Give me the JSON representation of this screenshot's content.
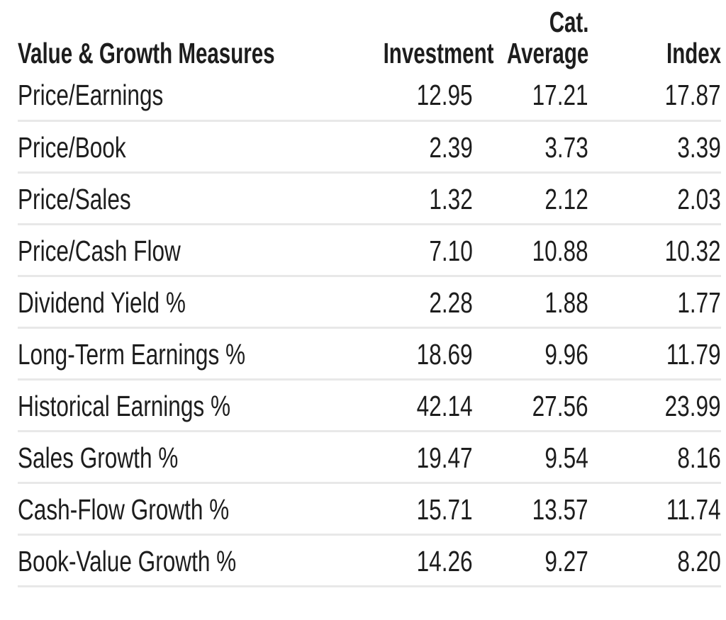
{
  "table": {
    "header": {
      "measures": "Value & Growth Measures",
      "investment": "Investment",
      "cat_line1": "Cat.",
      "cat_line2": "Average",
      "index": "Index"
    }
  },
  "chart_data": {
    "type": "table",
    "title": "Value & Growth Measures",
    "columns": [
      "Value & Growth Measures",
      "Investment",
      "Cat. Average",
      "Index"
    ],
    "rows": [
      [
        "Price/Earnings",
        "12.95",
        "17.21",
        "17.87"
      ],
      [
        "Price/Book",
        "2.39",
        "3.73",
        "3.39"
      ],
      [
        "Price/Sales",
        "1.32",
        "2.12",
        "2.03"
      ],
      [
        "Price/Cash Flow",
        "7.10",
        "10.88",
        "10.32"
      ],
      [
        "Dividend Yield %",
        "2.28",
        "1.88",
        "1.77"
      ],
      [
        "Long-Term Earnings %",
        "18.69",
        "9.96",
        "11.79"
      ],
      [
        "Historical Earnings %",
        "42.14",
        "27.56",
        "23.99"
      ],
      [
        "Sales Growth %",
        "19.47",
        "9.54",
        "8.16"
      ],
      [
        "Cash-Flow Growth %",
        "15.71",
        "13.57",
        "11.74"
      ],
      [
        "Book-Value Growth %",
        "14.26",
        "9.27",
        "8.20"
      ]
    ],
    "layout": {
      "label_column_align": "left",
      "value_columns_align": "right",
      "row_dividers": true,
      "header_divider": false
    }
  },
  "colors": {
    "text": "#1d1d1d",
    "divider": "#e8e8e8",
    "background": "#ffffff"
  }
}
